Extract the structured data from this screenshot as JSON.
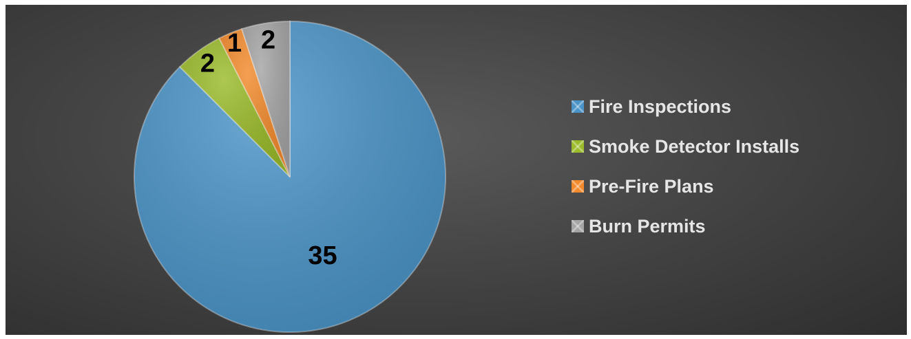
{
  "chart_data": {
    "type": "pie",
    "title": "",
    "categories": [
      "Fire Inspections",
      "Smoke Detector Installs",
      "Pre-Fire Plans",
      "Burn Permits"
    ],
    "values": [
      35,
      2,
      1,
      2
    ],
    "colors": [
      "#4a93c6",
      "#9bbb2a",
      "#f28a2c",
      "#a5a5a5"
    ],
    "data_labels": [
      "35",
      "2",
      "1",
      "2"
    ],
    "start_angle_deg": 0,
    "direction": "clockwise",
    "legend_position": "right"
  },
  "legend": {
    "items": [
      {
        "label": "Fire Inspections",
        "color": "#4a93c6"
      },
      {
        "label": "Smoke Detector Installs",
        "color": "#9bbb2a"
      },
      {
        "label": "Pre-Fire Plans",
        "color": "#f28a2c"
      },
      {
        "label": "Burn Permits",
        "color": "#a5a5a5"
      }
    ]
  }
}
